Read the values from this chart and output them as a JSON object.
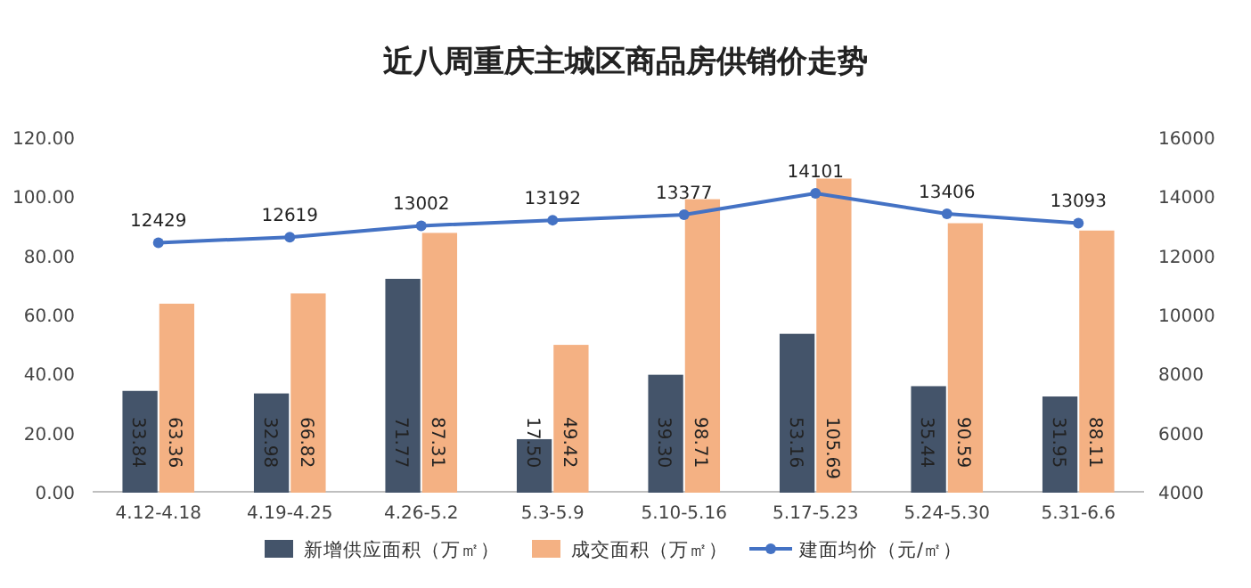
{
  "chart_data": {
    "type": "bar",
    "title": "近八周重庆主城区商品房供销价走势",
    "categories": [
      "4.12-4.18",
      "4.19-4.25",
      "4.26-5.2",
      "5.3-5.9",
      "5.10-5.16",
      "5.17-5.23",
      "5.24-5.30",
      "5.31-6.6"
    ],
    "series": [
      {
        "name": "新增供应面积（万㎡）",
        "color": "#44546a",
        "values": [
          33.84,
          32.98,
          71.77,
          17.5,
          39.3,
          53.16,
          35.44,
          31.95
        ],
        "value_labels": [
          "33.84",
          "32.98",
          "71.77",
          "17.50",
          "39.30",
          "53.16",
          "35.44",
          "31.95"
        ]
      },
      {
        "name": "成交面积（万㎡）",
        "color": "#f4b183",
        "values": [
          63.36,
          66.82,
          87.31,
          49.42,
          98.71,
          105.69,
          90.59,
          88.11
        ],
        "value_labels": [
          "63.36",
          "66.82",
          "87.31",
          "49.42",
          "98.71",
          "105.69",
          "90.59",
          "88.11"
        ]
      },
      {
        "name": "建面均价（元/㎡）",
        "type": "line",
        "axis": "y2",
        "color": "#4472c4",
        "marker": "circle",
        "values": [
          12429,
          12619,
          13002,
          13192,
          13377,
          14101,
          13406,
          13093
        ]
      }
    ],
    "ylim": [
      0,
      120
    ],
    "yticks": [
      {
        "value": 0,
        "label": "0.00"
      },
      {
        "value": 20,
        "label": "20.00"
      },
      {
        "value": 40,
        "label": "40.00"
      },
      {
        "value": 60,
        "label": "60.00"
      },
      {
        "value": 80,
        "label": "80.00"
      },
      {
        "value": 100,
        "label": "100.00"
      },
      {
        "value": 120,
        "label": "120.00"
      }
    ],
    "y2lim": [
      4000,
      16000
    ],
    "y2ticks": [
      4000,
      6000,
      8000,
      10000,
      12000,
      14000,
      16000
    ],
    "data_labels": true,
    "legend": "bottom",
    "grid": false
  }
}
